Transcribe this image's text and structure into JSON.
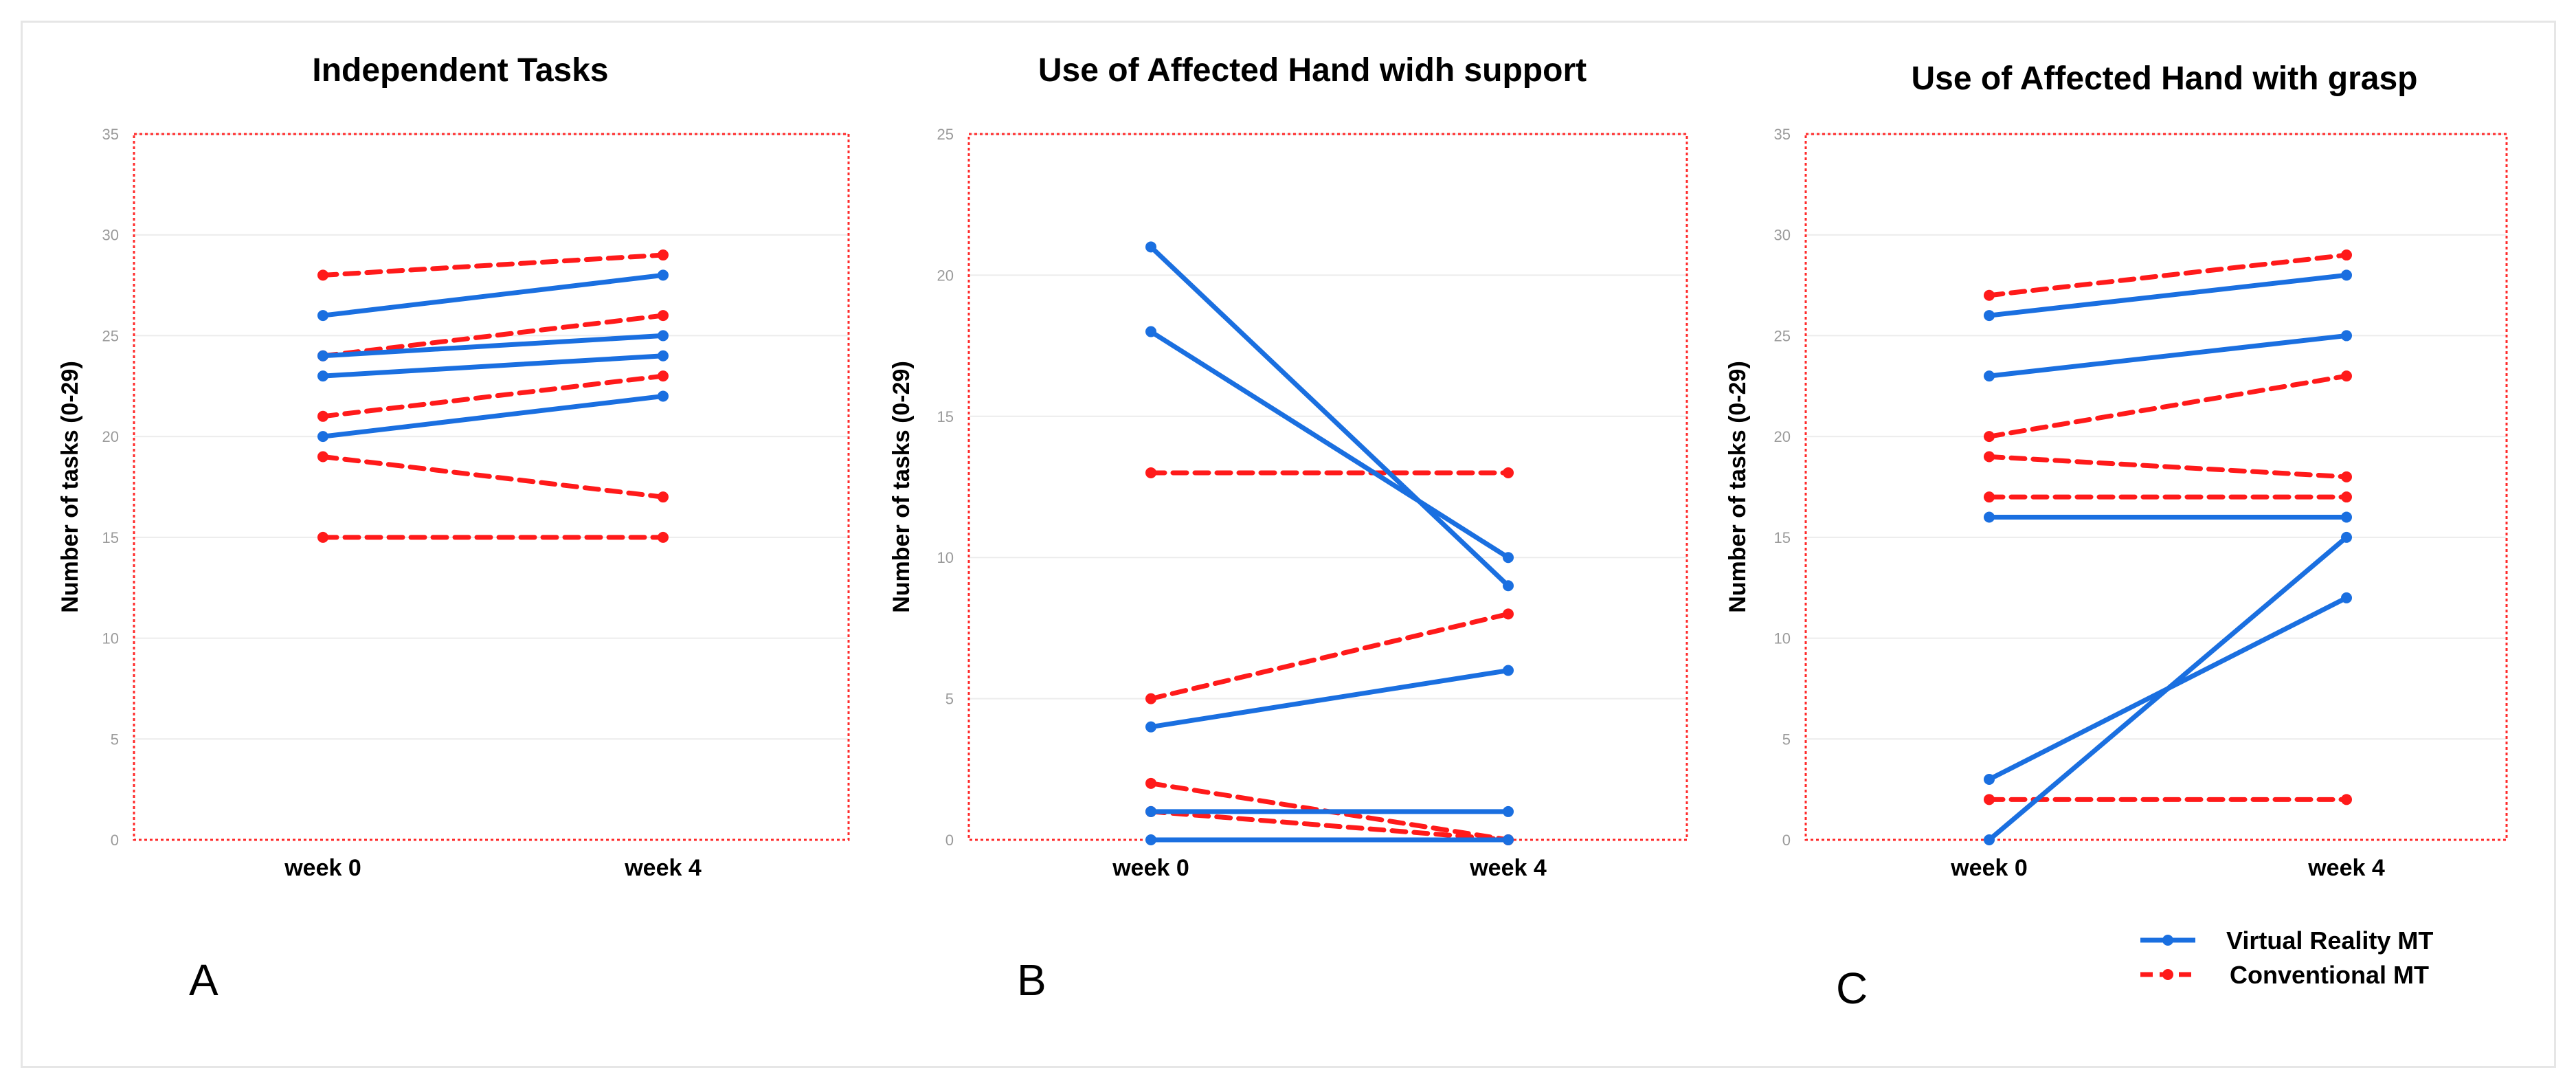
{
  "colors": {
    "vr": "#1a6fe0",
    "conventional": "#ff1a1a",
    "plot_border": "#ff2a2a",
    "grid": "#ececec"
  },
  "legend": {
    "vr_label": "Virtual Reality MT",
    "conventional_label": "Conventional MT"
  },
  "chart_data": [
    {
      "type": "line",
      "panel": "A",
      "title": "Independent Tasks",
      "ylabel": "Number of tasks (0-29)",
      "xlabel": "",
      "categories": [
        "week 0",
        "week 4"
      ],
      "ylim": [
        0,
        35
      ],
      "yticks": [
        0,
        5,
        10,
        15,
        20,
        25,
        30,
        35
      ],
      "grid": true,
      "series": [
        {
          "group": "vr",
          "values": [
            26,
            28
          ]
        },
        {
          "group": "vr",
          "values": [
            24,
            25
          ]
        },
        {
          "group": "vr",
          "values": [
            23,
            24
          ]
        },
        {
          "group": "vr",
          "values": [
            20,
            22
          ]
        },
        {
          "group": "conventional",
          "values": [
            28,
            29
          ]
        },
        {
          "group": "conventional",
          "values": [
            24,
            26
          ]
        },
        {
          "group": "conventional",
          "values": [
            21,
            23
          ]
        },
        {
          "group": "conventional",
          "values": [
            19,
            17
          ]
        },
        {
          "group": "conventional",
          "values": [
            15,
            15
          ]
        }
      ]
    },
    {
      "type": "line",
      "panel": "B",
      "title": "Use of Affected Hand widh support",
      "ylabel": "Number of tasks (0-29)",
      "xlabel": "",
      "categories": [
        "week 0",
        "week 4"
      ],
      "ylim": [
        0,
        25
      ],
      "yticks": [
        0,
        5,
        10,
        15,
        20,
        25
      ],
      "grid": true,
      "series": [
        {
          "group": "vr",
          "values": [
            21,
            9
          ]
        },
        {
          "group": "vr",
          "values": [
            18,
            10
          ]
        },
        {
          "group": "vr",
          "values": [
            4,
            6
          ]
        },
        {
          "group": "vr",
          "values": [
            1,
            1
          ]
        },
        {
          "group": "vr",
          "values": [
            0,
            0
          ]
        },
        {
          "group": "conventional",
          "values": [
            13,
            13
          ]
        },
        {
          "group": "conventional",
          "values": [
            5,
            8
          ]
        },
        {
          "group": "conventional",
          "values": [
            2,
            0
          ]
        },
        {
          "group": "conventional",
          "values": [
            1,
            0
          ]
        }
      ]
    },
    {
      "type": "line",
      "panel": "C",
      "title": "Use of Affected Hand with grasp",
      "ylabel": "Number of tasks (0-29)",
      "xlabel": "",
      "categories": [
        "week 0",
        "week 4"
      ],
      "ylim": [
        0,
        35
      ],
      "yticks": [
        0,
        5,
        10,
        15,
        20,
        25,
        30,
        35
      ],
      "grid": true,
      "series": [
        {
          "group": "vr",
          "values": [
            26,
            28
          ]
        },
        {
          "group": "vr",
          "values": [
            23,
            25
          ]
        },
        {
          "group": "vr",
          "values": [
            16,
            16
          ]
        },
        {
          "group": "vr",
          "values": [
            3,
            12
          ]
        },
        {
          "group": "vr",
          "values": [
            0,
            15
          ]
        },
        {
          "group": "conventional",
          "values": [
            27,
            29
          ]
        },
        {
          "group": "conventional",
          "values": [
            20,
            23
          ]
        },
        {
          "group": "conventional",
          "values": [
            19,
            18
          ]
        },
        {
          "group": "conventional",
          "values": [
            17,
            17
          ]
        },
        {
          "group": "conventional",
          "values": [
            2,
            2
          ]
        }
      ]
    }
  ]
}
